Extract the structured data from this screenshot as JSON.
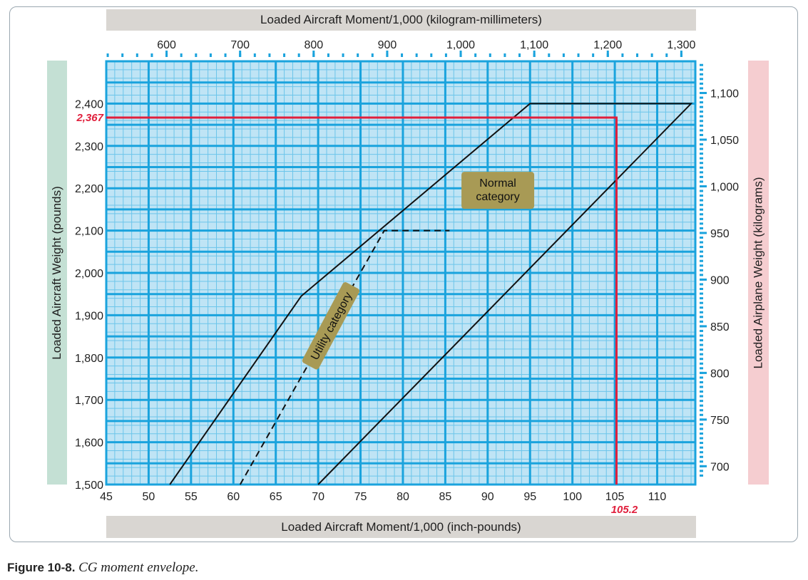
{
  "figure": {
    "label": "Figure 10-8.",
    "caption": "CG moment envelope."
  },
  "colors": {
    "grid_bg": "#bfe4f5",
    "grid_major": "#1aa3dd",
    "grid_minor": "#6cc5ea",
    "highlight": "#e01f3c",
    "label_bg": "#a89a55",
    "band_top_bottom": "#d9d6d2",
    "band_left": "#c4e0d4",
    "band_right": "#f5cdd0"
  },
  "chart_data": {
    "type": "line",
    "title": "",
    "xlabel": "Loaded Aircraft Moment/1,000 (inch-pounds)",
    "ylabel": "Loaded Aircraft Weight (pounds)",
    "x2label": "Loaded Aircraft Moment/1,000 (kilogram-millimeters)",
    "y2label": "Loaded Airplane Weight (kilograms)",
    "xlim": [
      45,
      114.5
    ],
    "ylim": [
      1500,
      2500
    ],
    "x2lim": [
      518,
      1319
    ],
    "y2lim": [
      680.4,
      1134
    ],
    "grid": true,
    "xticks": [
      45,
      50,
      55,
      60,
      65,
      70,
      75,
      80,
      85,
      90,
      95,
      100,
      105,
      110
    ],
    "xtick_labels": [
      "45",
      "50",
      "55",
      "60",
      "65",
      "70",
      "75",
      "80",
      "85",
      "90",
      "95",
      "100",
      "105",
      "110"
    ],
    "yticks": [
      1500,
      1600,
      1700,
      1800,
      1900,
      2000,
      2100,
      2200,
      2300,
      2400
    ],
    "ytick_labels": [
      "1,500",
      "1,600",
      "1,700",
      "1,800",
      "1,900",
      "2,000",
      "2,100",
      "2,200",
      "2,300",
      "2,400"
    ],
    "x2ticks": [
      600,
      700,
      800,
      900,
      1000,
      1100,
      1200,
      1300
    ],
    "x2tick_labels": [
      "600",
      "700",
      "800",
      "900",
      "1,000",
      "1,100",
      "1,200",
      "1,300"
    ],
    "y2ticks": [
      700,
      750,
      800,
      850,
      900,
      950,
      1000,
      1050,
      1100
    ],
    "y2tick_labels": [
      "700",
      "750",
      "800",
      "850",
      "900",
      "950",
      "1,000",
      "1,050",
      "1,100"
    ],
    "series": [
      {
        "name": "Normal category",
        "style": "solid",
        "x": [
          52.5,
          68.0,
          95.0,
          114.0,
          70.0
        ],
        "y": [
          1500,
          1945,
          2400,
          2400,
          1500
        ]
      },
      {
        "name": "Utility category",
        "style": "dashed",
        "x": [
          60.8,
          77.8,
          85.5
        ],
        "y": [
          1500,
          2100,
          2100
        ]
      }
    ],
    "annotations": [
      {
        "text": "Normal category",
        "x": 91.2,
        "y": 2195
      },
      {
        "text": "Utility category",
        "x": 71.5,
        "y": 1875,
        "rotation": -62
      }
    ],
    "highlight": {
      "x": 105.2,
      "y": 2367,
      "x_label": "105.2",
      "y_label": "2,367"
    }
  }
}
